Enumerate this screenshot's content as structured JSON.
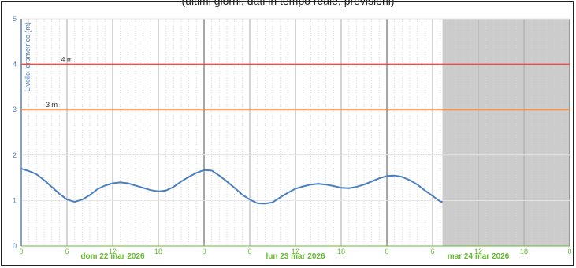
{
  "caption": "(ultimi giorni, dati in tempo reale; previsioni)",
  "chart_data": {
    "type": "line",
    "ylabel": "Livello idrometrico (m)",
    "ylim": [
      0,
      5
    ],
    "yticks": [
      "0",
      "1",
      "2",
      "3",
      "4",
      "5"
    ],
    "xlim_hours": [
      0,
      72
    ],
    "xticks": [
      {
        "h": 0,
        "label": "0"
      },
      {
        "h": 6,
        "label": "6"
      },
      {
        "h": 12,
        "label": "12"
      },
      {
        "h": 18,
        "label": "18"
      },
      {
        "h": 24,
        "label": "0"
      },
      {
        "h": 30,
        "label": "6"
      },
      {
        "h": 36,
        "label": "12"
      },
      {
        "h": 42,
        "label": "18"
      },
      {
        "h": 48,
        "label": "0"
      },
      {
        "h": 54,
        "label": "6"
      },
      {
        "h": 60,
        "label": "12"
      },
      {
        "h": 66,
        "label": "18"
      },
      {
        "h": 72,
        "label": "0"
      }
    ],
    "day_labels": [
      {
        "center_h": 12,
        "label": "dom 22 mar 2026"
      },
      {
        "center_h": 36,
        "label": "lun 23 mar 2026"
      },
      {
        "center_h": 60,
        "label": "mar 24 mar 2026"
      }
    ],
    "thresholds": [
      {
        "name": "4 m",
        "value": 4,
        "color": "#d9534f"
      },
      {
        "name": "3 m",
        "value": 3,
        "color": "#f0883e"
      }
    ],
    "forecast_start_h": 55.3,
    "series": [
      {
        "color": "#4a7fc1",
        "points": [
          [
            0,
            1.7
          ],
          [
            1,
            1.65
          ],
          [
            2,
            1.58
          ],
          [
            3,
            1.45
          ],
          [
            4,
            1.3
          ],
          [
            5,
            1.15
          ],
          [
            6,
            1.02
          ],
          [
            7,
            0.97
          ],
          [
            8,
            1.02
          ],
          [
            9,
            1.12
          ],
          [
            10,
            1.25
          ],
          [
            11,
            1.33
          ],
          [
            12,
            1.38
          ],
          [
            13,
            1.4
          ],
          [
            14,
            1.38
          ],
          [
            15,
            1.33
          ],
          [
            16,
            1.28
          ],
          [
            17,
            1.23
          ],
          [
            18,
            1.2
          ],
          [
            19,
            1.22
          ],
          [
            20,
            1.3
          ],
          [
            21,
            1.42
          ],
          [
            22,
            1.52
          ],
          [
            23,
            1.61
          ],
          [
            24,
            1.67
          ],
          [
            25,
            1.66
          ],
          [
            26,
            1.55
          ],
          [
            27,
            1.42
          ],
          [
            28,
            1.28
          ],
          [
            29,
            1.13
          ],
          [
            30,
            1.02
          ],
          [
            31,
            0.94
          ],
          [
            32,
            0.93
          ],
          [
            33,
            0.96
          ],
          [
            34,
            1.07
          ],
          [
            35,
            1.17
          ],
          [
            36,
            1.26
          ],
          [
            37,
            1.31
          ],
          [
            38,
            1.35
          ],
          [
            39,
            1.37
          ],
          [
            40,
            1.35
          ],
          [
            41,
            1.32
          ],
          [
            42,
            1.28
          ],
          [
            43,
            1.27
          ],
          [
            44,
            1.3
          ],
          [
            45,
            1.35
          ],
          [
            46,
            1.42
          ],
          [
            47,
            1.49
          ],
          [
            48,
            1.54
          ],
          [
            49,
            1.55
          ],
          [
            50,
            1.52
          ],
          [
            51,
            1.45
          ],
          [
            52,
            1.35
          ],
          [
            53,
            1.22
          ],
          [
            54,
            1.1
          ],
          [
            55,
            0.98
          ],
          [
            55.3,
            0.97
          ]
        ]
      }
    ],
    "grid": true
  }
}
